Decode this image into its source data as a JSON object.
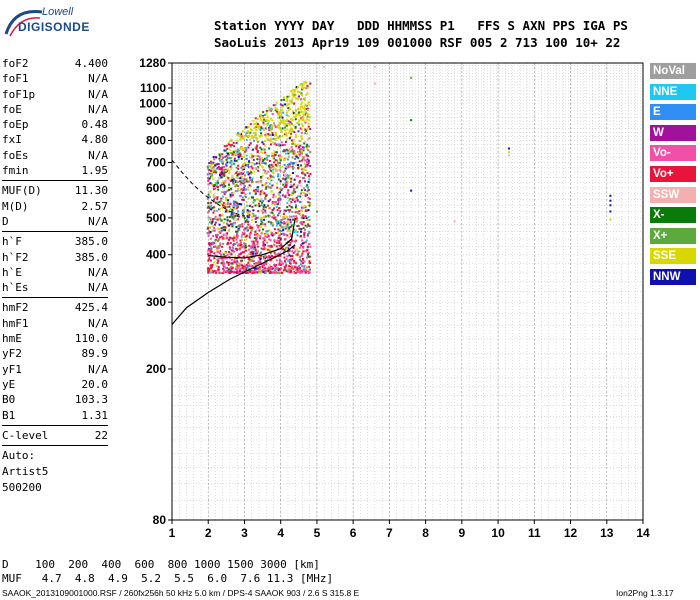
{
  "logo": {
    "line1": "Lowell",
    "line2": "DIGISONDE"
  },
  "header": {
    "line1": "Station YYYY DAY   DDD HHMMSS P1   FFS S AXN PPS IGA PS",
    "line2": "SaoLuis 2013 Apr19 109 001000 RSF 005 2 713 100 10+ 22"
  },
  "params": [
    [
      {
        "name": "foF2",
        "value": "4.400"
      },
      {
        "name": "foF1",
        "value": "N/A"
      },
      {
        "name": "foF1p",
        "value": "N/A"
      },
      {
        "name": "foE",
        "value": "N/A"
      },
      {
        "name": "foEp",
        "value": "0.48"
      },
      {
        "name": "fxI",
        "value": "4.80"
      },
      {
        "name": "foEs",
        "value": "N/A"
      },
      {
        "name": "fmin",
        "value": "1.95"
      }
    ],
    [
      {
        "name": "MUF(D)",
        "value": "11.30"
      },
      {
        "name": "M(D)",
        "value": "2.57"
      },
      {
        "name": "D",
        "value": "N/A"
      }
    ],
    [
      {
        "name": "h`F",
        "value": "385.0"
      },
      {
        "name": "h`F2",
        "value": "385.0"
      },
      {
        "name": "h`E",
        "value": "N/A"
      },
      {
        "name": "h`Es",
        "value": "N/A"
      }
    ],
    [
      {
        "name": "hmF2",
        "value": "425.4"
      },
      {
        "name": "hmF1",
        "value": "N/A"
      },
      {
        "name": "hmE",
        "value": "110.0"
      },
      {
        "name": "yF2",
        "value": "89.9"
      },
      {
        "name": "yF1",
        "value": "N/A"
      },
      {
        "name": "yE",
        "value": "20.0"
      },
      {
        "name": "B0",
        "value": "103.3"
      },
      {
        "name": "B1",
        "value": "1.31"
      }
    ],
    [
      {
        "name": "C-level",
        "value": "22"
      }
    ]
  ],
  "auto": [
    "Auto:",
    "Artist5",
    "500200"
  ],
  "legend": [
    {
      "label": "NoVal",
      "color": "#9e9e9e"
    },
    {
      "label": "NNE",
      "color": "#1ec8f0"
    },
    {
      "label": "E",
      "color": "#2f8ff5"
    },
    {
      "label": "W",
      "color": "#a0129c"
    },
    {
      "label": "Vo-",
      "color": "#f050a8"
    },
    {
      "label": "Vo+",
      "color": "#e8143c"
    },
    {
      "label": "SSW",
      "color": "#f4b0b0"
    },
    {
      "label": "X-",
      "color": "#0a7a0a"
    },
    {
      "label": "X+",
      "color": "#5caa3c"
    },
    {
      "label": "SSE",
      "color": "#d8d800"
    },
    {
      "label": "NNW",
      "color": "#1010b0"
    }
  ],
  "bottom": {
    "row1": "D    100  200  400  600  800 1000 1500 3000 [km]",
    "row2": "MUF   4.7  4.8  4.9  5.2  5.5  6.0  7.6 11.3 [MHz]"
  },
  "footer": {
    "left": "SAAOK_2013109001000.RSF / 260fx256h 50 kHz 5.0 km / DPS-4 SAAOK 903 / 2.6 S 315.8 E",
    "right": "Ion2Png 1.3.17"
  },
  "chart_data": {
    "type": "scatter",
    "title": "",
    "xlabel": "",
    "ylabel": "",
    "xlim": [
      1,
      14
    ],
    "ylim": [
      80,
      1280
    ],
    "yscale": "log",
    "xticks": [
      1,
      2,
      3,
      4,
      5,
      6,
      7,
      8,
      9,
      10,
      11,
      12,
      13,
      14
    ],
    "yticks": [
      80,
      200,
      300,
      400,
      500,
      600,
      700,
      800,
      900,
      1000,
      1100,
      1280
    ],
    "grid": true,
    "echo_region": {
      "fmin": 1.95,
      "fmax": 4.8,
      "hmin": 360,
      "hmax": 1180
    },
    "profile_line": [
      [
        1.0,
        262
      ],
      [
        1.4,
        290
      ],
      [
        2.0,
        318
      ],
      [
        2.6,
        345
      ],
      [
        3.2,
        368
      ],
      [
        3.8,
        392
      ],
      [
        4.2,
        410
      ],
      [
        4.4,
        425
      ]
    ],
    "virtual_trace": [
      [
        2.0,
        398
      ],
      [
        2.5,
        394
      ],
      [
        3.0,
        392
      ],
      [
        3.5,
        400
      ],
      [
        4.0,
        415
      ],
      [
        4.3,
        440
      ],
      [
        4.4,
        500
      ]
    ],
    "dashed_trace": [
      [
        1.0,
        710
      ],
      [
        1.3,
        655
      ],
      [
        1.6,
        610
      ],
      [
        1.9,
        575
      ],
      [
        2.2,
        548
      ],
      [
        2.6,
        520
      ],
      [
        3.0,
        505
      ]
    ],
    "isolated_echoes": [
      {
        "f": 6.6,
        "h": 1250,
        "c": "SSW"
      },
      {
        "f": 6.6,
        "h": 1130,
        "c": "SSW"
      },
      {
        "f": 7.6,
        "h": 1170,
        "c": "X+"
      },
      {
        "f": 7.6,
        "h": 905,
        "c": "X-"
      },
      {
        "f": 7.6,
        "h": 590,
        "c": "NNW"
      },
      {
        "f": 8.8,
        "h": 490,
        "c": "SSW"
      },
      {
        "f": 10.3,
        "h": 762,
        "c": "NNW"
      },
      {
        "f": 10.3,
        "h": 745,
        "c": "SSE"
      },
      {
        "f": 10.3,
        "h": 730,
        "c": "SSW"
      },
      {
        "f": 13.1,
        "h": 572,
        "c": "NNW"
      },
      {
        "f": 13.1,
        "h": 555,
        "c": "NNW"
      },
      {
        "f": 13.1,
        "h": 540,
        "c": "NNW"
      },
      {
        "f": 13.1,
        "h": 520,
        "c": "NNW"
      },
      {
        "f": 13.1,
        "h": 495,
        "c": "SSE"
      },
      {
        "f": 5.0,
        "h": 520,
        "c": "X+"
      },
      {
        "f": 5.2,
        "h": 1250,
        "c": "SSW"
      }
    ]
  }
}
